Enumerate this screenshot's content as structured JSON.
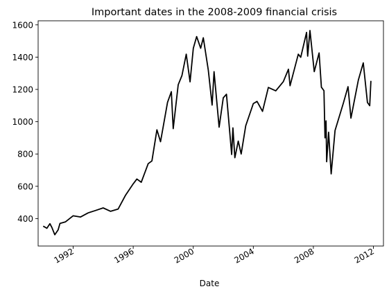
{
  "chart_data": {
    "type": "line",
    "title": "Important dates in the 2008-2009 financial crisis",
    "xlabel": "Date",
    "ylabel": "",
    "xlim": [
      "1989-09-01",
      "2012-09-01"
    ],
    "ylim": [
      230,
      1625
    ],
    "grid": false,
    "line_color": "#000000",
    "x_ticks": [
      "1992-01-01",
      "1996-01-01",
      "2000-01-01",
      "2004-01-01",
      "2008-01-01",
      "2012-01-01"
    ],
    "x_tick_labels": [
      "1992",
      "1996",
      "2000",
      "2004",
      "2008",
      "2012"
    ],
    "y_ticks": [
      400,
      600,
      800,
      1000,
      1200,
      1400,
      1600
    ],
    "y_tick_labels": [
      "400",
      "600",
      "800",
      "1000",
      "1200",
      "1400",
      "1600"
    ],
    "series": [
      {
        "x": [
          "1990-01-02",
          "1990-04-01",
          "1990-06-15",
          "1990-08-01",
          "1990-10-11",
          "1990-12-31",
          "1991-02-15",
          "1991-06-30",
          "1991-12-31",
          "1992-06-30",
          "1992-12-31",
          "1993-06-30",
          "1993-12-31",
          "1994-06-30",
          "1994-12-31",
          "1995-06-30",
          "1995-12-31",
          "1996-03-31",
          "1996-07-15",
          "1996-12-31",
          "1997-03-31",
          "1997-07-31",
          "1997-10-27",
          "1997-12-31",
          "1998-04-15",
          "1998-07-17",
          "1998-08-31",
          "1998-12-31",
          "1999-03-31",
          "1999-07-15",
          "1999-10-15",
          "2000-01-03",
          "2000-03-24",
          "2000-06-30",
          "2000-09-01",
          "2000-12-31",
          "2001-04-04",
          "2001-05-21",
          "2001-09-21",
          "2001-12-31",
          "2002-03-19",
          "2002-07-23",
          "2002-08-22",
          "2002-10-09",
          "2002-12-31",
          "2003-03-11",
          "2003-06-30",
          "2003-12-31",
          "2004-03-31",
          "2004-08-12",
          "2004-12-31",
          "2005-06-30",
          "2005-12-31",
          "2006-05-05",
          "2006-06-13",
          "2006-12-31",
          "2007-02-27",
          "2007-07-19",
          "2007-08-15",
          "2007-10-09",
          "2008-01-22",
          "2008-05-19",
          "2008-07-15",
          "2008-09-15",
          "2008-10-10",
          "2008-11-04",
          "2008-11-20",
          "2009-01-06",
          "2009-03-09",
          "2009-06-12",
          "2009-12-31",
          "2010-04-23",
          "2010-07-02",
          "2010-12-31",
          "2011-04-29",
          "2011-08-08",
          "2011-10-03",
          "2011-10-31"
        ],
        "y": [
          353,
          340,
          368,
          345,
          300,
          330,
          370,
          380,
          417,
          410,
          435,
          450,
          466,
          445,
          459,
          545,
          615,
          645,
          625,
          740,
          757,
          950,
          876,
          970,
          1120,
          1186,
          957,
          1229,
          1286,
          1418,
          1247,
          1455,
          1527,
          1455,
          1520,
          1320,
          1103,
          1310,
          966,
          1148,
          1170,
          797,
          962,
          777,
          880,
          800,
          975,
          1112,
          1126,
          1064,
          1212,
          1191,
          1248,
          1325,
          1223,
          1418,
          1399,
          1553,
          1406,
          1565,
          1310,
          1426,
          1214,
          1192,
          900,
          1005,
          752,
          935,
          677,
          946,
          1115,
          1217,
          1022,
          1258,
          1364,
          1119,
          1099,
          1253
        ]
      }
    ]
  }
}
